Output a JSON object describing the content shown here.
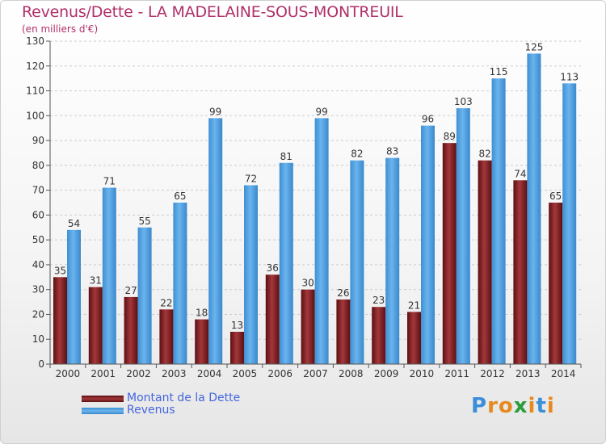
{
  "title": "Revenus/Dette - LA MADELAINE-SOUS-MONTREUIL",
  "subtitle": "(en milliers d'€)",
  "logo": {
    "text": "Proxiti",
    "letters": [
      "P",
      "r",
      "o",
      "x",
      "i",
      "t",
      "i"
    ],
    "colors": [
      "#3a8fd8",
      "#e68a1f",
      "#e68a1f",
      "#2a9d3a",
      "#e68a1f",
      "#3a8fd8",
      "#e68a1f"
    ]
  },
  "colors": {
    "debt": "#7a1f22",
    "revenue": "#4fa0e0",
    "title": "#b0306a",
    "legend_text": "#4466dd"
  },
  "chart_data": {
    "type": "bar",
    "title": "Revenus/Dette - LA MADELAINE-SOUS-MONTREUIL",
    "ylabel": "(en milliers d'€)",
    "xlabel": "",
    "ylim": [
      0,
      130
    ],
    "yticks": [
      0,
      10,
      20,
      30,
      40,
      50,
      60,
      70,
      80,
      90,
      100,
      110,
      120,
      130
    ],
    "grid": true,
    "legend_position": "bottom-left",
    "categories": [
      "2000",
      "2001",
      "2002",
      "2003",
      "2004",
      "2005",
      "2006",
      "2007",
      "2008",
      "2009",
      "2010",
      "2011",
      "2012",
      "2013",
      "2014"
    ],
    "series": [
      {
        "name": "Montant de la Dette",
        "values": [
          35,
          31,
          27,
          22,
          18,
          13,
          36,
          30,
          26,
          23,
          21,
          89,
          82,
          74,
          65
        ]
      },
      {
        "name": "Revenus",
        "values": [
          54,
          71,
          55,
          65,
          99,
          72,
          81,
          99,
          82,
          83,
          96,
          103,
          115,
          125,
          113
        ]
      }
    ]
  }
}
